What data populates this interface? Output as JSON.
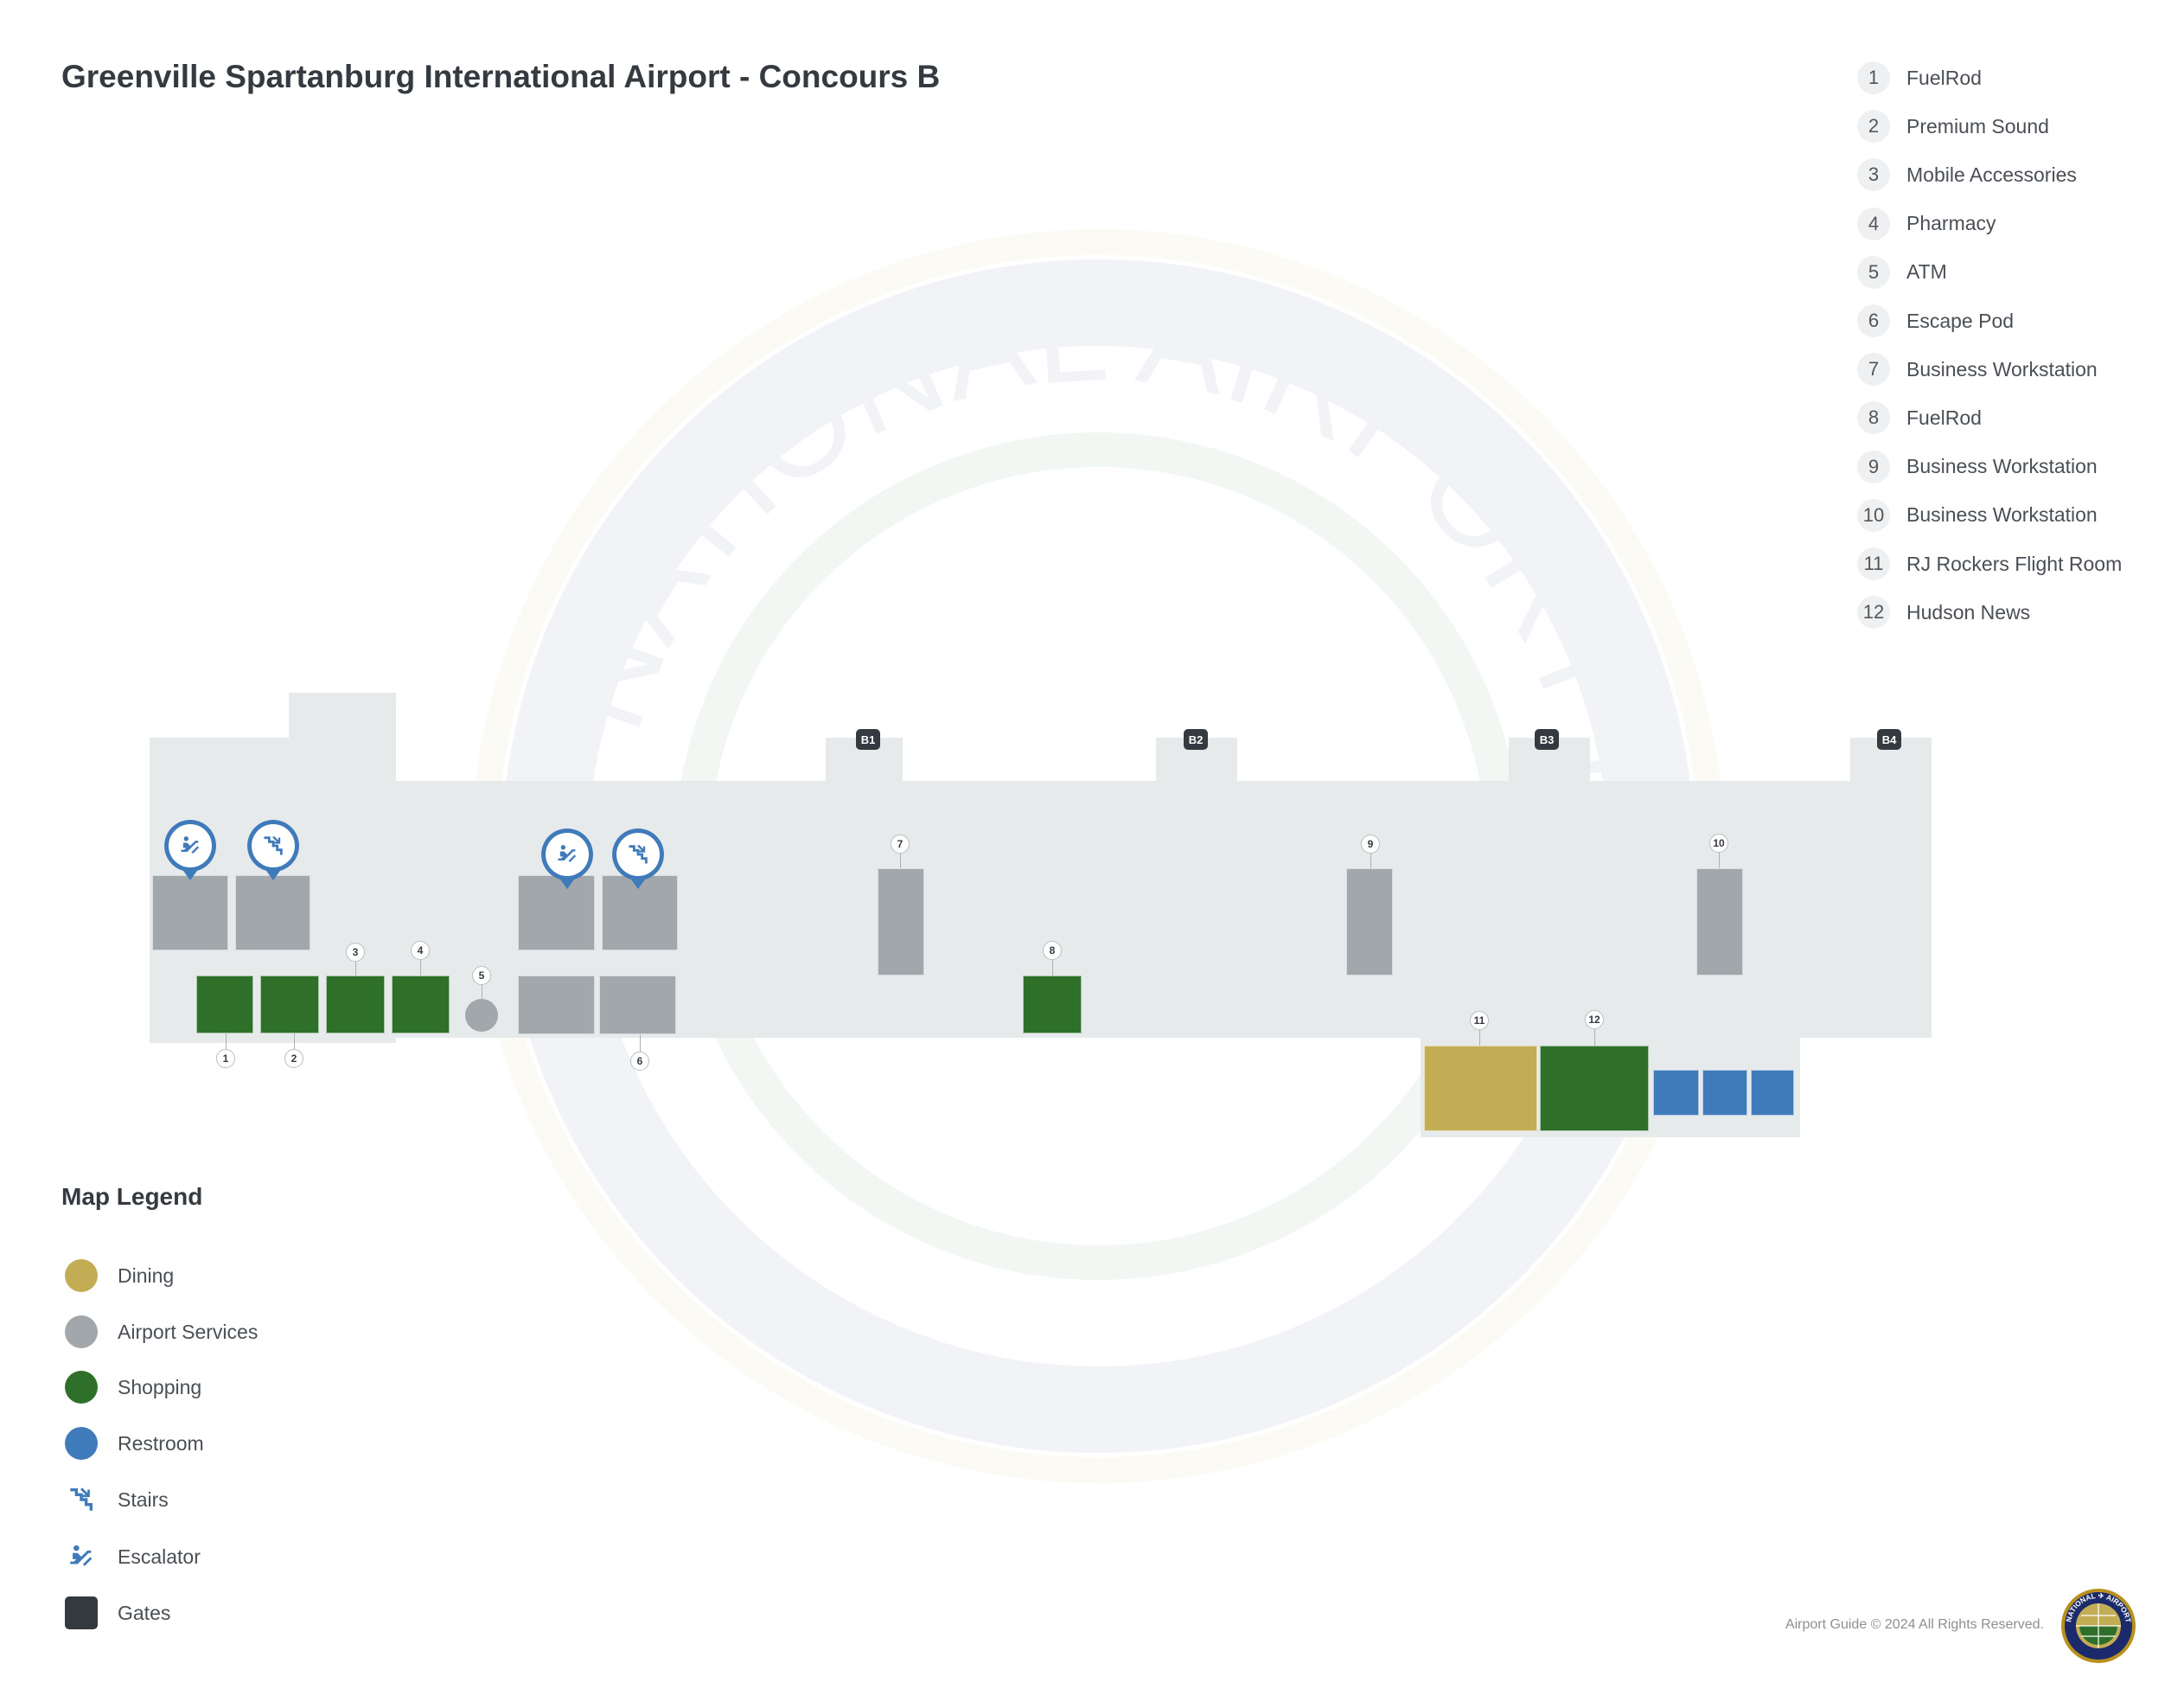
{
  "title": "Greenville Spartanburg International Airport - Concours B",
  "directory": [
    {
      "num": "1",
      "label": "FuelRod"
    },
    {
      "num": "2",
      "label": "Premium Sound"
    },
    {
      "num": "3",
      "label": "Mobile Accessories"
    },
    {
      "num": "4",
      "label": "Pharmacy"
    },
    {
      "num": "5",
      "label": "ATM"
    },
    {
      "num": "6",
      "label": "Escape Pod"
    },
    {
      "num": "7",
      "label": "Business Workstation"
    },
    {
      "num": "8",
      "label": "FuelRod"
    },
    {
      "num": "9",
      "label": "Business Workstation"
    },
    {
      "num": "10",
      "label": "Business Workstation"
    },
    {
      "num": "11",
      "label": "RJ Rockers Flight Room"
    },
    {
      "num": "12",
      "label": "Hudson News"
    }
  ],
  "gates": [
    "B1",
    "B2",
    "B3",
    "B4"
  ],
  "legend": {
    "title": "Map Legend",
    "items": [
      {
        "label": "Dining",
        "icon": "circle",
        "color": "#c2ad55"
      },
      {
        "label": "Airport Services",
        "icon": "circle",
        "color": "#a1a7aa"
      },
      {
        "label": "Shopping",
        "icon": "circle",
        "color": "#2e7029"
      },
      {
        "label": "Restroom",
        "icon": "circle",
        "color": "#3f7abb"
      },
      {
        "label": "Stairs",
        "icon": "stairs-icon",
        "color": "#3f7abb"
      },
      {
        "label": "Escalator",
        "icon": "escalator-icon",
        "color": "#3f7abb"
      },
      {
        "label": "Gates",
        "icon": "square",
        "color": "#343a40"
      }
    ]
  },
  "colors": {
    "dining": "#c2ad55",
    "services": "#a1a7aa",
    "shopping": "#2e7029",
    "restroom": "#3f7abb",
    "gates": "#343a40",
    "floor": "#e7eaeb"
  },
  "watermark": "NATIONAL AIRPORT DATABASE",
  "footer": {
    "copyright": "Airport Guide © 2024 All Rights Reserved.",
    "logo_text": "NATIONAL AIRPORT DATABASE"
  }
}
